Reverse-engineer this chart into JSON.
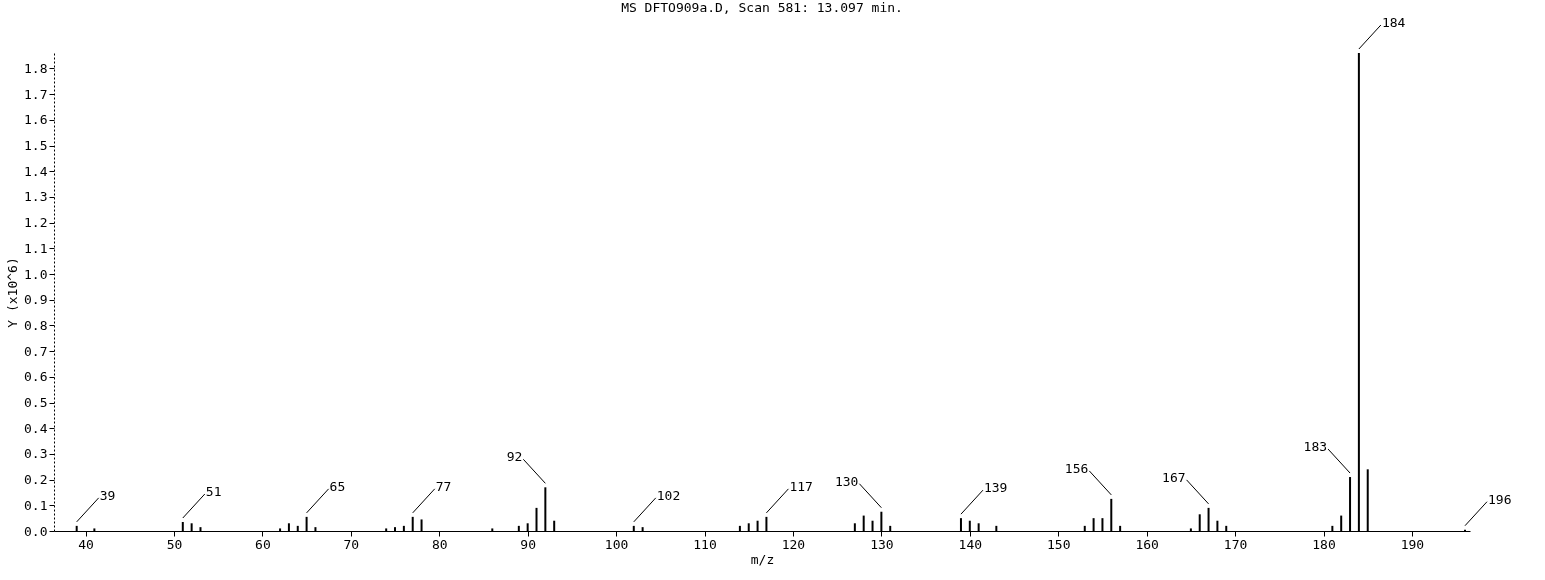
{
  "chart_data": {
    "type": "bar",
    "title": "MS DFTO909a.D, Scan 581: 13.097 min.",
    "xlabel": "m/z",
    "ylabel": "Y (x10^6)",
    "x": [
      39,
      41,
      51,
      52,
      53,
      62,
      63,
      64,
      65,
      66,
      74,
      75,
      76,
      77,
      78,
      86,
      89,
      90,
      91,
      92,
      93,
      102,
      103,
      114,
      115,
      116,
      117,
      127,
      128,
      129,
      130,
      131,
      139,
      140,
      141,
      143,
      153,
      154,
      155,
      156,
      157,
      165,
      166,
      167,
      168,
      169,
      181,
      182,
      183,
      184,
      185,
      196
    ],
    "values": [
      0.02,
      0.01,
      0.035,
      0.03,
      0.015,
      0.01,
      0.03,
      0.02,
      0.055,
      0.015,
      0.01,
      0.015,
      0.02,
      0.055,
      0.045,
      0.01,
      0.02,
      0.03,
      0.09,
      0.17,
      0.04,
      0.02,
      0.015,
      0.02,
      0.03,
      0.04,
      0.055,
      0.03,
      0.06,
      0.04,
      0.075,
      0.02,
      0.05,
      0.04,
      0.03,
      0.02,
      0.02,
      0.05,
      0.05,
      0.125,
      0.02,
      0.01,
      0.065,
      0.09,
      0.04,
      0.02,
      0.02,
      0.06,
      0.21,
      1.86,
      0.24,
      0.005
    ],
    "color": "#000000",
    "xlim": [
      37,
      196
    ],
    "xticks": [
      40,
      50,
      60,
      70,
      80,
      90,
      100,
      110,
      120,
      130,
      140,
      150,
      160,
      170,
      180,
      190
    ],
    "ylim": [
      0,
      1.86
    ],
    "yticks": [
      {
        "value": 0,
        "label": "0.0"
      },
      0.1,
      0.2,
      0.3,
      0.4,
      0.5,
      0.6,
      0.7,
      0.8,
      0.9,
      {
        "value": 1,
        "label": "1.0"
      },
      1.1,
      1.2,
      1.3,
      1.4,
      1.5,
      1.6,
      1.7,
      1.8
    ],
    "grid": false,
    "annotations": [
      {
        "text": "39",
        "x": 39,
        "y": 0.02
      },
      {
        "text": "51",
        "x": 51,
        "y": 0.035
      },
      {
        "text": "65",
        "x": 65,
        "y": 0.055
      },
      {
        "text": "77",
        "x": 77,
        "y": 0.055
      },
      {
        "text": "92",
        "x": 92,
        "y": 0.17
      },
      {
        "text": "102",
        "x": 102,
        "y": 0.02
      },
      {
        "text": "117",
        "x": 117,
        "y": 0.055
      },
      {
        "text": "130",
        "x": 130,
        "y": 0.075
      },
      {
        "text": "139",
        "x": 139,
        "y": 0.05
      },
      {
        "text": "156",
        "x": 156,
        "y": 0.125
      },
      {
        "text": "167",
        "x": 167,
        "y": 0.09
      },
      {
        "text": "183",
        "x": 183,
        "y": 0.21
      },
      {
        "text": "184",
        "x": 184,
        "y": 1.86
      },
      {
        "text": "196",
        "x": 196,
        "y": 0.005
      }
    ]
  }
}
